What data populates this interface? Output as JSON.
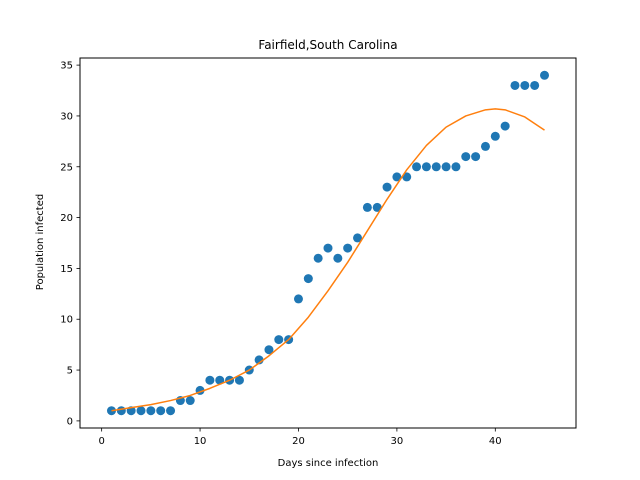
{
  "chart_data": {
    "type": "scatter",
    "title": "Fairfield,South Carolina",
    "xlabel": "Days since infection",
    "ylabel": "Population infected",
    "xlim": [
      -2.2,
      48.2
    ],
    "ylim": [
      -0.7,
      35.7
    ],
    "xticks": [
      0,
      10,
      20,
      30,
      40
    ],
    "yticks": [
      0,
      5,
      10,
      15,
      20,
      25,
      30,
      35
    ],
    "grid": false,
    "series": [
      {
        "kind": "scatter",
        "color": "#1f77b4",
        "points": [
          [
            1,
            1
          ],
          [
            2,
            1
          ],
          [
            3,
            1
          ],
          [
            4,
            1
          ],
          [
            5,
            1
          ],
          [
            6,
            1
          ],
          [
            7,
            1
          ],
          [
            8,
            2
          ],
          [
            9,
            2
          ],
          [
            10,
            3
          ],
          [
            11,
            4
          ],
          [
            12,
            4
          ],
          [
            13,
            4
          ],
          [
            14,
            4
          ],
          [
            15,
            5
          ],
          [
            16,
            6
          ],
          [
            17,
            7
          ],
          [
            18,
            8
          ],
          [
            19,
            8
          ],
          [
            20,
            12
          ],
          [
            21,
            14
          ],
          [
            22,
            16
          ],
          [
            23,
            17
          ],
          [
            24,
            16
          ],
          [
            25,
            17
          ],
          [
            26,
            18
          ],
          [
            27,
            21
          ],
          [
            28,
            21
          ],
          [
            29,
            23
          ],
          [
            30,
            24
          ],
          [
            31,
            24
          ],
          [
            32,
            25
          ],
          [
            33,
            25
          ],
          [
            34,
            25
          ],
          [
            35,
            25
          ],
          [
            36,
            25
          ],
          [
            37,
            26
          ],
          [
            38,
            26
          ],
          [
            39,
            27
          ],
          [
            40,
            28
          ],
          [
            41,
            29
          ],
          [
            42,
            33
          ],
          [
            43,
            33
          ],
          [
            44,
            33
          ],
          [
            45,
            34
          ]
        ]
      },
      {
        "kind": "line",
        "color": "#ff7f0e",
        "points": [
          [
            1,
            1.0
          ],
          [
            3,
            1.3
          ],
          [
            5,
            1.6
          ],
          [
            7,
            2.0
          ],
          [
            9,
            2.5
          ],
          [
            11,
            3.2
          ],
          [
            13,
            4.0
          ],
          [
            15,
            5.0
          ],
          [
            17,
            6.4
          ],
          [
            19,
            8.0
          ],
          [
            21,
            10.2
          ],
          [
            23,
            12.8
          ],
          [
            25,
            15.6
          ],
          [
            27,
            18.7
          ],
          [
            29,
            21.8
          ],
          [
            31,
            24.7
          ],
          [
            33,
            27.1
          ],
          [
            35,
            28.9
          ],
          [
            37,
            30.0
          ],
          [
            39,
            30.6
          ],
          [
            40,
            30.7
          ],
          [
            41,
            30.6
          ],
          [
            43,
            29.9
          ],
          [
            45,
            28.6
          ]
        ]
      }
    ]
  }
}
